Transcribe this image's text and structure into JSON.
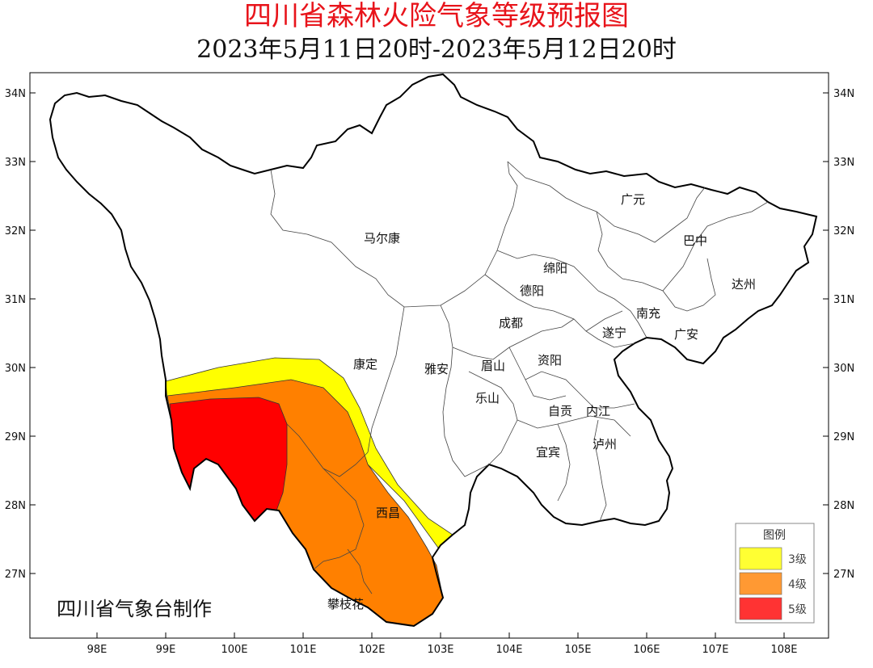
{
  "title": "四川省森林火险气象等级预报图",
  "subtitle": "2023年5月11日20时-2023年5月12日20时",
  "credit": "四川省气象台制作",
  "axes": {
    "lat_labels": [
      "34N",
      "33N",
      "32N",
      "31N",
      "30N",
      "29N",
      "28N",
      "27N"
    ],
    "lon_labels": [
      "98E",
      "99E",
      "100E",
      "101E",
      "102E",
      "103E",
      "104E",
      "105E",
      "106E",
      "107E",
      "108E"
    ]
  },
  "cities": [
    {
      "name": "马尔康"
    },
    {
      "name": "广元"
    },
    {
      "name": "巴中"
    },
    {
      "name": "绵阳"
    },
    {
      "name": "德阳"
    },
    {
      "name": "达州"
    },
    {
      "name": "成都"
    },
    {
      "name": "南充"
    },
    {
      "name": "遂宁"
    },
    {
      "name": "广安"
    },
    {
      "name": "康定"
    },
    {
      "name": "雅安"
    },
    {
      "name": "眉山"
    },
    {
      "name": "资阳"
    },
    {
      "name": "乐山"
    },
    {
      "name": "自贡"
    },
    {
      "name": "内江"
    },
    {
      "name": "宜宾"
    },
    {
      "name": "泸州"
    },
    {
      "name": "西昌"
    },
    {
      "name": "攀枝花"
    }
  ],
  "legend": {
    "title": "图例",
    "items": [
      {
        "label": "3级",
        "color": "#ffff33"
      },
      {
        "label": "4级",
        "color": "#ff9933"
      },
      {
        "label": "5级",
        "color": "#ff3333"
      }
    ]
  },
  "zones": [
    {
      "level": "3级",
      "color": "#ffff00"
    },
    {
      "level": "4级",
      "color": "#ff8000"
    },
    {
      "level": "5级",
      "color": "#ff0000"
    }
  ]
}
